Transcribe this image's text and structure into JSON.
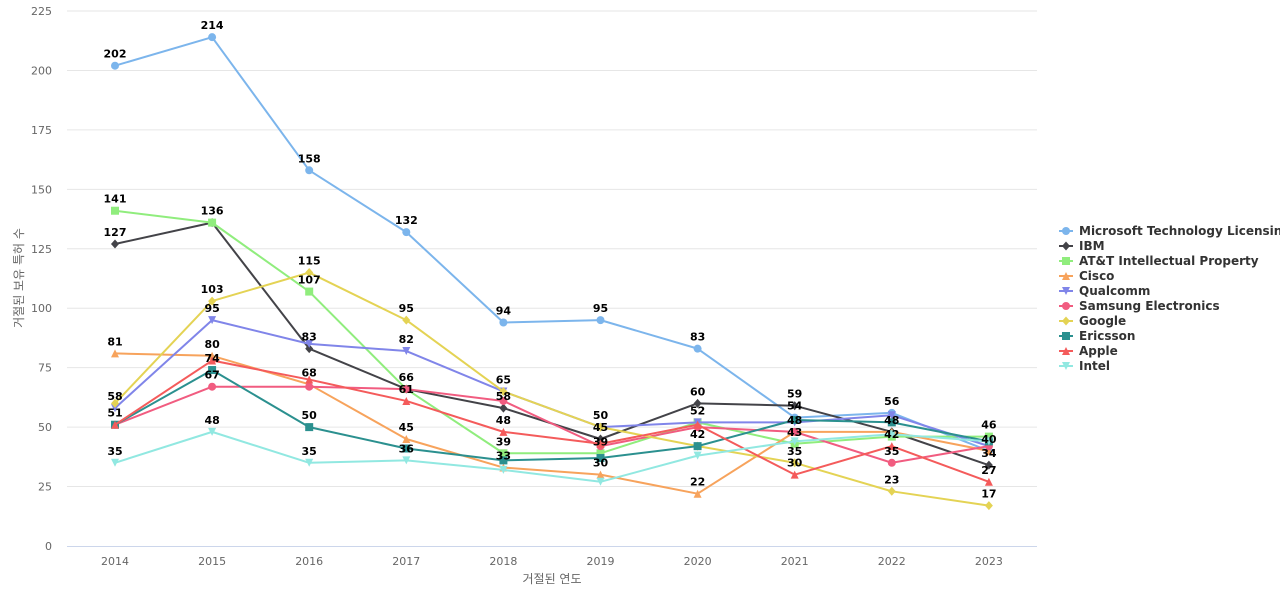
{
  "chart_data": {
    "type": "line",
    "title": "",
    "xlabel": "거절된 연도",
    "ylabel": "거절된 보유 특허 수",
    "x": [
      "2014",
      "2015",
      "2016",
      "2017",
      "2018",
      "2019",
      "2020",
      "2021",
      "2022",
      "2023"
    ],
    "ylim": [
      0,
      225
    ],
    "yticks": [
      0,
      25,
      50,
      75,
      100,
      125,
      150,
      175,
      200,
      225
    ],
    "grid": true,
    "legend_position": "right",
    "series": [
      {
        "name": "Microsoft Technology Licensing",
        "color": "#7cb5ec",
        "marker": "circle",
        "values": [
          202,
          214,
          158,
          132,
          94,
          95,
          83,
          54,
          56,
          40
        ]
      },
      {
        "name": "IBM",
        "color": "#434348",
        "marker": "diamond",
        "values": [
          127,
          136,
          83,
          66,
          58,
          45,
          60,
          59,
          48,
          34
        ]
      },
      {
        "name": "AT&T Intellectual Property",
        "color": "#90ed7d",
        "marker": "square",
        "values": [
          141,
          136,
          107,
          66,
          39,
          39,
          52,
          43,
          46,
          46
        ]
      },
      {
        "name": "Cisco",
        "color": "#f7a35c",
        "marker": "triangle",
        "values": [
          81,
          80,
          68,
          45,
          33,
          30,
          22,
          48,
          48,
          40
        ]
      },
      {
        "name": "Qualcomm",
        "color": "#8085e9",
        "marker": "triangle-down",
        "values": [
          58,
          95,
          85,
          82,
          65,
          50,
          52,
          52,
          55,
          42
        ]
      },
      {
        "name": "Samsung Electronics",
        "color": "#f15c80",
        "marker": "circle",
        "values": [
          51,
          67,
          67,
          66,
          61,
          42,
          50,
          48,
          35,
          42
        ]
      },
      {
        "name": "Google",
        "color": "#e4d354",
        "marker": "diamond",
        "values": [
          60,
          103,
          115,
          95,
          65,
          50,
          42,
          35,
          23,
          17
        ]
      },
      {
        "name": "Ericsson",
        "color": "#2b908f",
        "marker": "square",
        "values": [
          51,
          74,
          50,
          41,
          36,
          37,
          42,
          53,
          52,
          44
        ]
      },
      {
        "name": "Apple",
        "color": "#f45b5b",
        "marker": "triangle",
        "values": [
          51,
          78,
          70,
          61,
          48,
          43,
          51,
          30,
          42,
          27
        ]
      },
      {
        "name": "Intel",
        "color": "#91e8e1",
        "marker": "triangle-down",
        "values": [
          35,
          48,
          35,
          36,
          32,
          27,
          38,
          44,
          47,
          44
        ]
      }
    ],
    "data_labels": [
      {
        "x": "2014",
        "value": 202
      },
      {
        "x": "2014",
        "value": 141
      },
      {
        "x": "2014",
        "value": 127
      },
      {
        "x": "2014",
        "value": 81
      },
      {
        "x": "2014",
        "value": 58
      },
      {
        "x": "2014",
        "value": 51
      },
      {
        "x": "2014",
        "value": 35
      },
      {
        "x": "2015",
        "value": 214
      },
      {
        "x": "2015",
        "value": 136
      },
      {
        "x": "2015",
        "value": 103
      },
      {
        "x": "2015",
        "value": 95
      },
      {
        "x": "2015",
        "value": 80
      },
      {
        "x": "2015",
        "value": 74
      },
      {
        "x": "2015",
        "value": 67
      },
      {
        "x": "2015",
        "value": 48
      },
      {
        "x": "2016",
        "value": 158
      },
      {
        "x": "2016",
        "value": 115
      },
      {
        "x": "2016",
        "value": 107
      },
      {
        "x": "2016",
        "value": 83
      },
      {
        "x": "2016",
        "value": 68
      },
      {
        "x": "2016",
        "value": 50
      },
      {
        "x": "2016",
        "value": 35
      },
      {
        "x": "2017",
        "value": 132
      },
      {
        "x": "2017",
        "value": 95
      },
      {
        "x": "2017",
        "value": 82
      },
      {
        "x": "2017",
        "value": 66
      },
      {
        "x": "2017",
        "value": 61
      },
      {
        "x": "2017",
        "value": 45
      },
      {
        "x": "2017",
        "value": 36
      },
      {
        "x": "2018",
        "value": 94
      },
      {
        "x": "2018",
        "value": 65
      },
      {
        "x": "2018",
        "value": 58
      },
      {
        "x": "2018",
        "value": 48
      },
      {
        "x": "2018",
        "value": 39
      },
      {
        "x": "2018",
        "value": 33
      },
      {
        "x": "2019",
        "value": 95
      },
      {
        "x": "2019",
        "value": 50
      },
      {
        "x": "2019",
        "value": 45
      },
      {
        "x": "2019",
        "value": 39
      },
      {
        "x": "2019",
        "value": 30
      },
      {
        "x": "2020",
        "value": 83
      },
      {
        "x": "2020",
        "value": 60
      },
      {
        "x": "2020",
        "value": 52
      },
      {
        "x": "2020",
        "value": 42
      },
      {
        "x": "2020",
        "value": 22
      },
      {
        "x": "2021",
        "value": 59
      },
      {
        "x": "2021",
        "value": 54
      },
      {
        "x": "2021",
        "value": 48
      },
      {
        "x": "2021",
        "value": 43
      },
      {
        "x": "2021",
        "value": 35
      },
      {
        "x": "2021",
        "value": 30
      },
      {
        "x": "2022",
        "value": 56
      },
      {
        "x": "2022",
        "value": 48
      },
      {
        "x": "2022",
        "value": 42
      },
      {
        "x": "2022",
        "value": 35
      },
      {
        "x": "2022",
        "value": 23
      },
      {
        "x": "2023",
        "value": 46
      },
      {
        "x": "2023",
        "value": 40
      },
      {
        "x": "2023",
        "value": 34
      },
      {
        "x": "2023",
        "value": 27
      },
      {
        "x": "2023",
        "value": 17
      }
    ]
  }
}
